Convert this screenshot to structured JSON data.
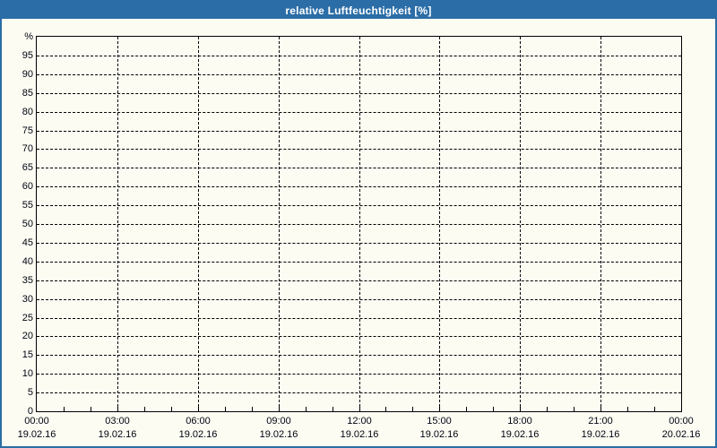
{
  "window": {
    "title": "relative Luftfeuchtigkeit [%]"
  },
  "colors": {
    "accent_blue": "#2b6da6",
    "page_background": "#fcfcf3",
    "grid_line": "#000000",
    "label_text": "#00030f",
    "title_text": "#ffffff"
  },
  "chart_data": {
    "type": "line",
    "title": "relative Luftfeuchtigkeit [%]",
    "xlabel": "",
    "ylabel": "%",
    "ylim": [
      0,
      100
    ],
    "y_tick_step": 5,
    "y_tick_labels": [
      "0",
      "5",
      "10",
      "15",
      "20",
      "25",
      "30",
      "35",
      "40",
      "45",
      "50",
      "55",
      "60",
      "65",
      "70",
      "75",
      "80",
      "85",
      "90",
      "95"
    ],
    "x_axis": {
      "hours_span": 24,
      "major_tick_hours": 3,
      "minor_tick_hours": 1,
      "ticks": [
        {
          "hour": 0,
          "time": "00:00",
          "date": "19.02.16"
        },
        {
          "hour": 3,
          "time": "03:00",
          "date": "19.02.16"
        },
        {
          "hour": 6,
          "time": "06:00",
          "date": "19.02.16"
        },
        {
          "hour": 9,
          "time": "09:00",
          "date": "19.02.16"
        },
        {
          "hour": 12,
          "time": "12:00",
          "date": "19.02.16"
        },
        {
          "hour": 15,
          "time": "15:00",
          "date": "19.02.16"
        },
        {
          "hour": 18,
          "time": "18:00",
          "date": "19.02.16"
        },
        {
          "hour": 21,
          "time": "21:00",
          "date": "19.02.16"
        },
        {
          "hour": 24,
          "time": "00:00",
          "date": "20.02.16"
        }
      ]
    },
    "grid": true,
    "legend": null,
    "series": []
  }
}
